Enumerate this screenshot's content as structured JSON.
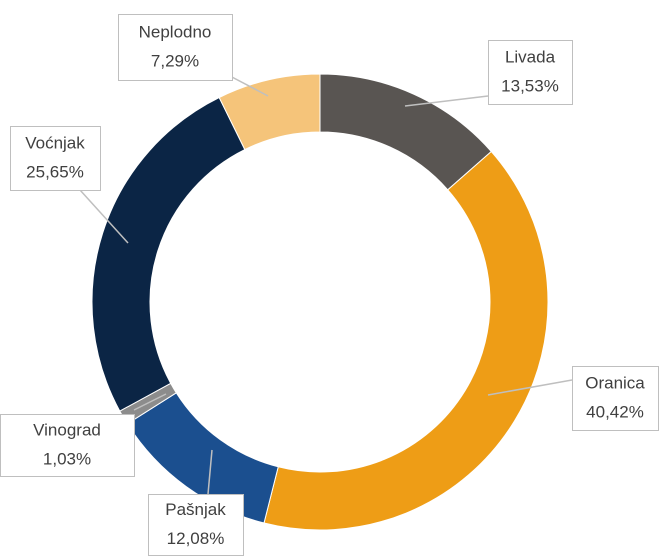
{
  "chart_data": {
    "type": "donut",
    "categories": [
      "Livada",
      "Oranica",
      "Pašnjak",
      "Vinograd",
      "Voćnjak",
      "Neplodno"
    ],
    "values": [
      13.53,
      40.42,
      12.08,
      1.03,
      25.65,
      7.29
    ],
    "value_labels": [
      "13,53%",
      "40,42%",
      "12,08%",
      "1,03%",
      "25,65%",
      "7,29%"
    ],
    "colors": [
      "#595552",
      "#ee9d16",
      "#1b4f8f",
      "#8c8c8c",
      "#0b2545",
      "#f5c47a"
    ]
  }
}
